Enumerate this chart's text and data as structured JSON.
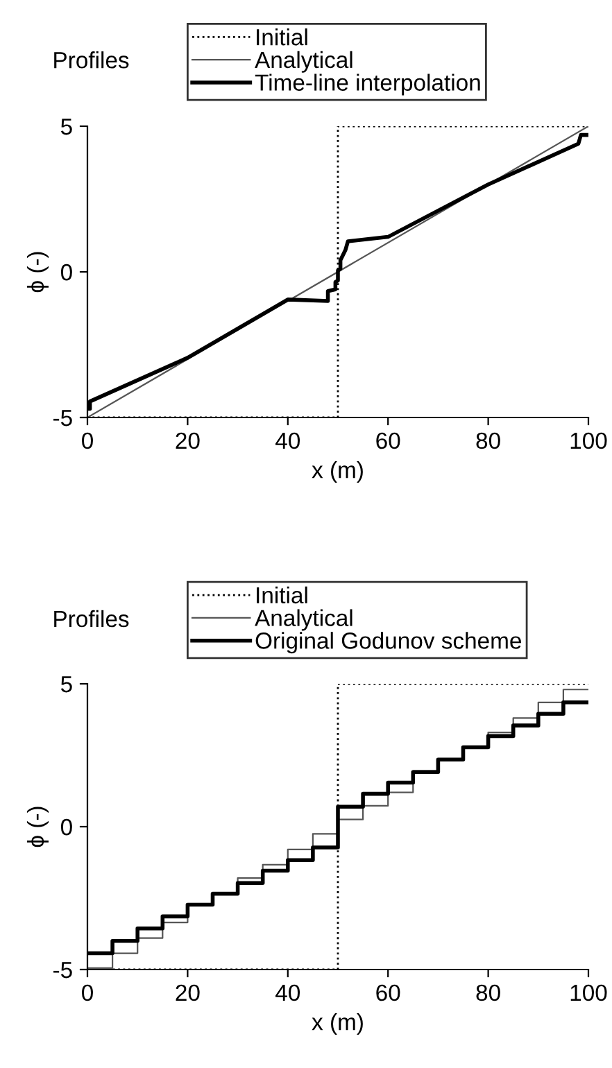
{
  "chart_data": [
    {
      "type": "line",
      "title": "Profiles",
      "xlabel": "x (m)",
      "ylabel": "ϕ (-)",
      "xlim": [
        0,
        100
      ],
      "ylim": [
        -5,
        5
      ],
      "xticks": [
        0,
        20,
        40,
        60,
        80,
        100
      ],
      "yticks": [
        -5,
        0,
        5
      ],
      "legend": "top",
      "grid": false,
      "series": [
        {
          "name": "Initial",
          "type": "step",
          "color": "#000000",
          "line_style": "dotted",
          "x": [
            0,
            50,
            100
          ],
          "values": [
            -5,
            5,
            5
          ]
        },
        {
          "name": "Analytical",
          "type": "line",
          "color": "#555555",
          "line_style": "solid",
          "x": [
            0,
            100
          ],
          "values": [
            -5,
            5
          ]
        },
        {
          "name": "Time-line interpolation",
          "type": "line",
          "color": "#000000",
          "line_style": "solid",
          "x": [
            0,
            0.5,
            0.5,
            20,
            40,
            48,
            48,
            49.5,
            49.5,
            50,
            50,
            50.5,
            50.5,
            51.5,
            52,
            60,
            80,
            98,
            98.5,
            100
          ],
          "values": [
            -4.7,
            -4.7,
            -4.45,
            -2.95,
            -0.95,
            -1.0,
            -0.66,
            -0.6,
            -0.35,
            -0.3,
            0.05,
            0.1,
            0.4,
            0.75,
            1.05,
            1.2,
            3.0,
            4.4,
            4.7,
            4.7
          ]
        }
      ]
    },
    {
      "type": "step",
      "title": "Profiles",
      "xlabel": "x (m)",
      "ylabel": "ϕ (-)",
      "xlim": [
        0,
        100
      ],
      "ylim": [
        -5,
        5
      ],
      "xticks": [
        0,
        20,
        40,
        60,
        80,
        100
      ],
      "yticks": [
        -5,
        0,
        5
      ],
      "legend": "top",
      "grid": false,
      "series": [
        {
          "name": "Initial",
          "color": "#000000",
          "line_style": "dotted",
          "x": [
            0,
            50,
            100
          ],
          "values": [
            -5,
            5,
            5
          ]
        },
        {
          "name": "Analytical",
          "color": "#555555",
          "line_style": "solid",
          "x": [
            0,
            5,
            10,
            15,
            20,
            25,
            30,
            35,
            40,
            45,
            50,
            55,
            60,
            65,
            70,
            75,
            80,
            85,
            90,
            95,
            100
          ],
          "values": [
            -4.95,
            -4.43,
            -3.9,
            -3.35,
            -2.75,
            -2.3,
            -1.8,
            -1.33,
            -0.8,
            -0.25,
            0.25,
            0.73,
            1.2,
            1.95,
            2.35,
            2.78,
            3.3,
            3.8,
            4.35,
            4.8,
            4.8
          ]
        },
        {
          "name": "Original Godunov scheme",
          "color": "#000000",
          "line_style": "solid",
          "x": [
            0,
            5,
            10,
            15,
            20,
            25,
            30,
            35,
            40,
            45,
            50,
            55,
            60,
            65,
            70,
            75,
            80,
            85,
            90,
            95,
            100
          ],
          "values": [
            -4.43,
            -4.0,
            -3.56,
            -3.14,
            -2.73,
            -2.35,
            -1.97,
            -1.54,
            -1.17,
            -0.73,
            0.7,
            1.15,
            1.54,
            1.91,
            2.35,
            2.78,
            3.17,
            3.54,
            3.95,
            4.35,
            4.35
          ]
        }
      ]
    }
  ]
}
